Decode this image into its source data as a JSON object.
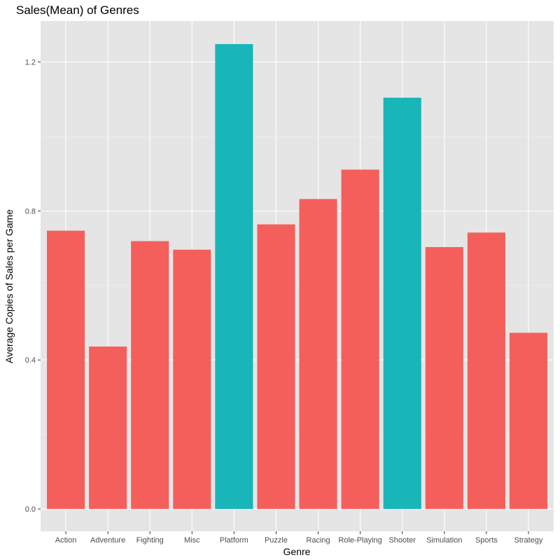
{
  "chart_data": {
    "type": "bar",
    "title": "Sales(Mean) of Genres",
    "xlabel": "Genre",
    "ylabel": "Average Copies of Sales per Game",
    "categories": [
      "Action",
      "Adventure",
      "Fighting",
      "Misc",
      "Platform",
      "Puzzle",
      "Racing",
      "Role-Playing",
      "Shooter",
      "Simulation",
      "Sports",
      "Strategy"
    ],
    "values": [
      0.747,
      0.436,
      0.719,
      0.696,
      1.248,
      0.764,
      0.832,
      0.911,
      1.104,
      0.703,
      0.742,
      0.473
    ],
    "highlight": [
      false,
      false,
      false,
      false,
      true,
      false,
      false,
      false,
      true,
      false,
      false,
      false
    ],
    "ylim": [
      -0.06,
      1.31
    ],
    "yticks": [
      0.0,
      0.4,
      0.8,
      1.2
    ],
    "ytick_labels": [
      "0.0",
      "0.4",
      "0.8",
      "1.2"
    ],
    "grid": true,
    "legend": "none",
    "colors": {
      "bar": "#F45F5C",
      "bar_highlight": "#18B5B9",
      "panel_background": "#E5E5E5",
      "grid_major": "#ffffff",
      "grid_minor": "#F2F2F2"
    }
  }
}
